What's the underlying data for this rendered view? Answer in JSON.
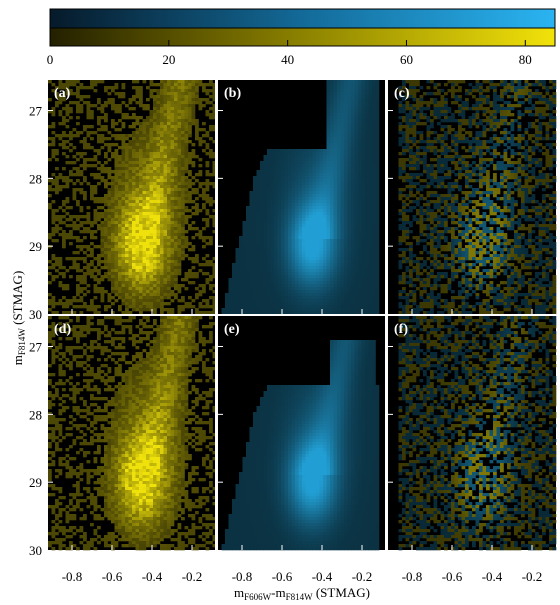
{
  "chart_data": {
    "type": "heatmap",
    "title": "",
    "colorbar": {
      "ticks": [
        "0",
        "20",
        "40",
        "60",
        "80"
      ],
      "range": [
        0,
        85
      ],
      "maps": [
        {
          "name": "",
          "color_low": "#061a2a",
          "color_high": "#2ab4f2"
        },
        {
          "name": "",
          "color_low": "#232000",
          "color_high": "#f2e20a"
        }
      ]
    },
    "ylabel_main": "m",
    "ylabel_sub": "F814W",
    "ylabel_unit": " (STMAG)",
    "xlabel_p1": "m",
    "xlabel_s1": "F606W",
    "xlabel_p2": "-m",
    "xlabel_s2": "F814W",
    "xlabel_unit": " (STMAG)",
    "xlim": [
      -0.92,
      -0.08
    ],
    "ylim": [
      30.0,
      26.55
    ],
    "x_ticks": [
      -0.8,
      -0.6,
      -0.4,
      -0.2
    ],
    "x_tick_labels": [
      "-0.8",
      "-0.6",
      "-0.4",
      "-0.2"
    ],
    "y_ticks": [
      27,
      28,
      29,
      30
    ],
    "y_tick_labels": [
      "27",
      "28",
      "29",
      "30"
    ],
    "panels": [
      {
        "label": "(a)",
        "kind": "observed"
      },
      {
        "label": "(b)",
        "kind": "model"
      },
      {
        "label": "(c)",
        "kind": "residual"
      },
      {
        "label": "(d)",
        "kind": "observed"
      },
      {
        "label": "(e)",
        "kind": "model"
      },
      {
        "label": "(f)",
        "kind": "residual"
      }
    ],
    "density_peak": {
      "x": -0.45,
      "y": 29.0,
      "value": 82
    },
    "colors": {
      "yellow": "#efe10c",
      "blue": "#26b4f0",
      "background": "#000000",
      "separator": "#ffffff"
    }
  }
}
